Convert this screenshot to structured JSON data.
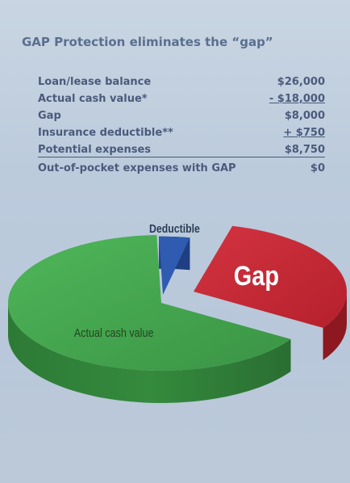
{
  "title": "GAP Protection eliminates the “gap”",
  "rows": [
    {
      "label": "Loan/lease balance",
      "value": "$26,000"
    },
    {
      "label": "Actual cash value*",
      "value": "- $18,000"
    },
    {
      "label": "Gap",
      "value": "$8,000"
    },
    {
      "label": "Insurance deductible**",
      "value": "+ $750"
    },
    {
      "label": "Potential expenses",
      "value": "$8,750"
    },
    {
      "label": "Out-of-pocket expenses with GAP",
      "value": "$0"
    }
  ],
  "chart_data": {
    "type": "pie",
    "slices": [
      {
        "label": "Actual cash value",
        "value": 18000,
        "color": "#3f9e4a"
      },
      {
        "label": "Deductible",
        "value": 750,
        "color": "#2f5bb0"
      },
      {
        "label": "Gap",
        "value": 8000,
        "color": "#c42a36"
      }
    ]
  }
}
